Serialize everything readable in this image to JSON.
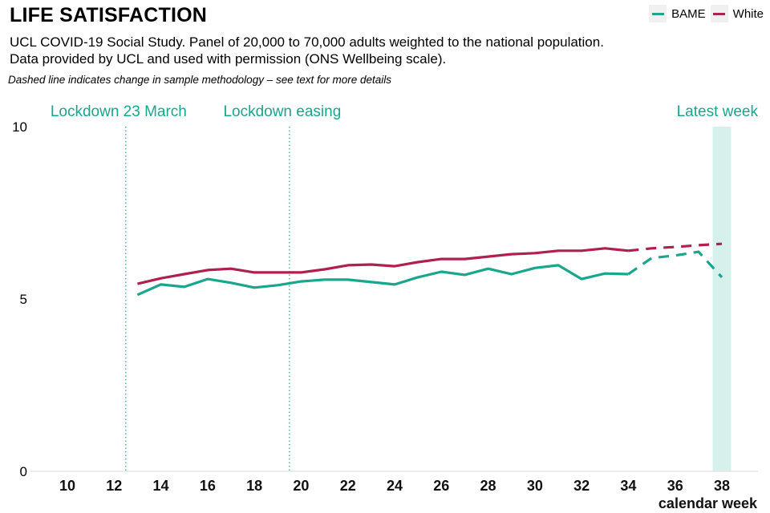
{
  "header": {
    "title": "LIFE SATISFACTION",
    "subtitle_line1": "UCL COVID-19 Social Study. Panel of 20,000 to 70,000 adults weighted to the national population.",
    "subtitle_line2": "Data provided by UCL and used with permission (ONS Wellbeing scale).",
    "note": "Dashed line indicates change in sample methodology – see text for more details"
  },
  "legend": [
    {
      "label": "BAME",
      "color": "#1aa58d"
    },
    {
      "label": "White",
      "color": "#b0204f"
    }
  ],
  "chart_data": {
    "type": "line",
    "title": "LIFE SATISFACTION",
    "xlabel": "calendar week",
    "ylabel": "",
    "xlim": [
      9,
      39
    ],
    "ylim": [
      0,
      10
    ],
    "x_ticks": [
      10,
      12,
      14,
      16,
      18,
      20,
      22,
      24,
      26,
      28,
      30,
      32,
      34,
      36,
      38
    ],
    "y_ticks": [
      0,
      5,
      10
    ],
    "grid": false,
    "legend_position": "top-right",
    "dashed_from_week": 34,
    "x": [
      13,
      14,
      15,
      16,
      17,
      18,
      19,
      20,
      21,
      22,
      23,
      24,
      25,
      26,
      27,
      28,
      29,
      30,
      31,
      32,
      33,
      34,
      35,
      36,
      37,
      38
    ],
    "series": [
      {
        "name": "BAME",
        "color": "#1aa58d",
        "values": [
          5.12,
          5.42,
          5.35,
          5.58,
          5.47,
          5.33,
          5.4,
          5.51,
          5.56,
          5.56,
          5.49,
          5.42,
          5.63,
          5.79,
          5.7,
          5.88,
          5.72,
          5.9,
          5.98,
          5.58,
          5.74,
          5.72,
          6.19,
          6.26,
          6.37,
          5.63
        ]
      },
      {
        "name": "White",
        "color": "#b0204f",
        "values": [
          5.44,
          5.6,
          5.72,
          5.84,
          5.88,
          5.77,
          5.77,
          5.77,
          5.86,
          5.98,
          6.0,
          5.95,
          6.07,
          6.16,
          6.16,
          6.23,
          6.3,
          6.33,
          6.4,
          6.4,
          6.47,
          6.4,
          6.47,
          6.51,
          6.56,
          6.6
        ]
      }
    ],
    "annotations": [
      {
        "label": "Lockdown 23 March",
        "week": 12.5,
        "type": "vline-dotted"
      },
      {
        "label": "Lockdown easing",
        "week": 19.5,
        "type": "vline-dotted"
      },
      {
        "label": "Latest week",
        "week": 38,
        "type": "highlight-band"
      }
    ]
  }
}
